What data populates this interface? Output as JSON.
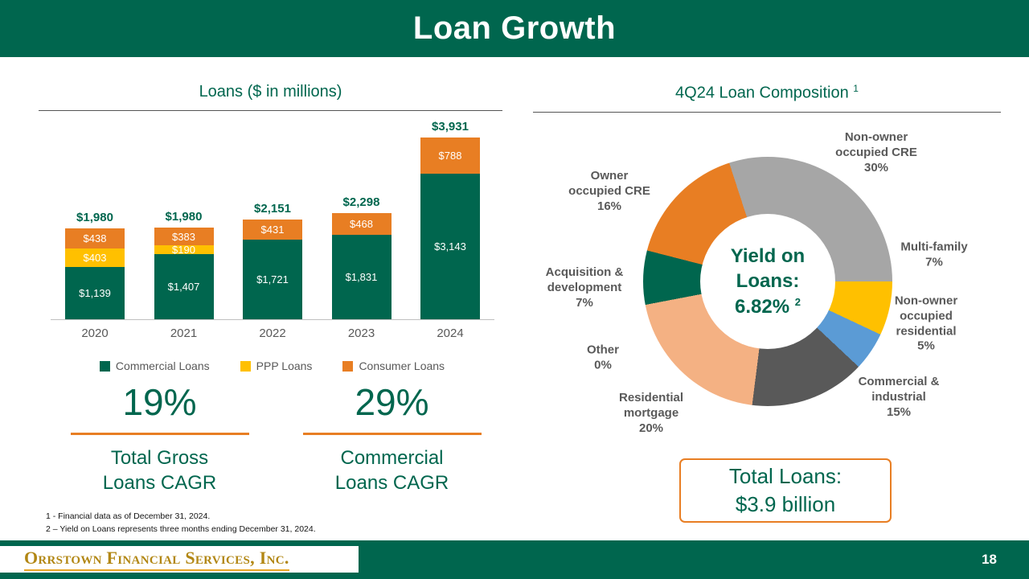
{
  "header": {
    "title": "Loan Growth"
  },
  "left_panel": {
    "title": "Loans ($ in millions)",
    "stats": [
      {
        "value": "19%",
        "label_lines": [
          "Total Gross",
          "Loans CAGR"
        ]
      },
      {
        "value": "29%",
        "label_lines": [
          "Commercial",
          "Loans CAGR"
        ]
      }
    ]
  },
  "right_panel": {
    "title": "4Q24 Loan Composition",
    "title_superscript": "1",
    "donut_center": {
      "line1": "Yield on",
      "line2": "Loans:",
      "value": "6.82%",
      "superscript": "2"
    },
    "total_box": {
      "line1": "Total Loans:",
      "line2": "$3.9 billion"
    }
  },
  "footnotes": [
    "1 -  Financial data as of December 31, 2024.",
    "2 – Yield on Loans represents three months ending December 31, 2024."
  ],
  "footer": {
    "logo_text": "Orrstown Financial Services, Inc.",
    "page_number": "18"
  },
  "colors": {
    "brand_green": "#00664E",
    "accent_orange": "#E87E23",
    "accent_yellow": "#FFC000"
  },
  "chart_data": [
    {
      "type": "bar",
      "stacked": true,
      "title": "Loans ($ in millions)",
      "unit": "$ millions",
      "categories": [
        "2020",
        "2021",
        "2022",
        "2023",
        "2024"
      ],
      "series": [
        {
          "name": "Commercial Loans",
          "color": "#00664E",
          "values": [
            1139,
            1407,
            1721,
            1831,
            3143
          ]
        },
        {
          "name": "PPP Loans",
          "color": "#FFC000",
          "values": [
            403,
            190,
            0,
            0,
            0
          ]
        },
        {
          "name": "Consumer Loans",
          "color": "#E87E23",
          "values": [
            438,
            383,
            431,
            468,
            788
          ]
        }
      ],
      "totals": [
        1980,
        1980,
        2151,
        2298,
        3931
      ],
      "total_labels": [
        "$1,980",
        "$1,980",
        "$2,151",
        "$2,298",
        "$3,931"
      ],
      "segment_labels": [
        [
          "$1,139",
          "$403",
          "$438"
        ],
        [
          "$1,407",
          "$190",
          "$383"
        ],
        [
          "$1,721",
          "",
          "$431"
        ],
        [
          "$1,831",
          "",
          "$468"
        ],
        [
          "$3,143",
          "",
          "$788"
        ]
      ],
      "ylim": [
        0,
        4100
      ],
      "grid": false,
      "legend_position": "bottom"
    },
    {
      "type": "pie",
      "subtype": "donut",
      "title": "4Q24 Loan Composition",
      "start_angle_deg": -18,
      "center_text": "Yield on Loans: 6.82%",
      "slices": [
        {
          "label": "Non-owner occupied CRE",
          "pct": 30,
          "pct_label": "30%",
          "color": "#A6A6A6"
        },
        {
          "label": "Multi-family",
          "pct": 7,
          "pct_label": "7%",
          "color": "#FFC000"
        },
        {
          "label": "Non-owner occupied residential",
          "pct": 5,
          "pct_label": "5%",
          "color": "#5B9BD5"
        },
        {
          "label": "Commercial & industrial",
          "pct": 15,
          "pct_label": "15%",
          "color": "#595959"
        },
        {
          "label": "Residential mortgage",
          "pct": 20,
          "pct_label": "20%",
          "color": "#F4B183"
        },
        {
          "label": "Other",
          "pct": 0,
          "pct_label": "0%",
          "color": "#808080"
        },
        {
          "label": "Acquisition & development",
          "pct": 7,
          "pct_label": "7%",
          "color": "#00664E"
        },
        {
          "label": "Owner occupied CRE",
          "pct": 16,
          "pct_label": "16%",
          "color": "#E87E23"
        }
      ]
    }
  ]
}
